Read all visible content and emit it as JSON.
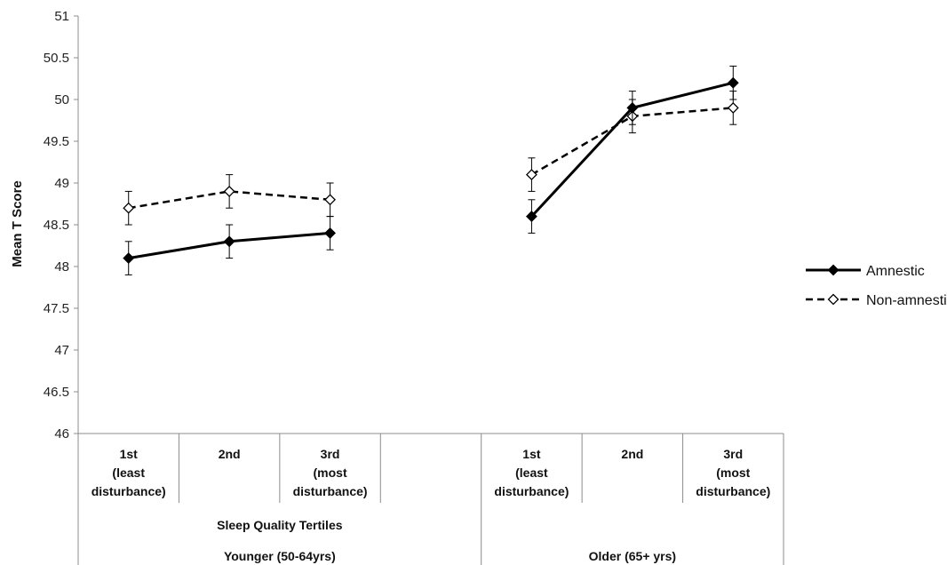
{
  "chart_data": {
    "type": "line",
    "title": "",
    "ylabel": "Mean T Score",
    "ylim": [
      46,
      51
    ],
    "yticks": [
      46,
      46.5,
      47,
      47.5,
      48,
      48.5,
      49,
      49.5,
      50,
      50.5,
      51
    ],
    "grid": false,
    "legend": "right",
    "categories": [
      {
        "lines": [
          "1st",
          "(least",
          "disturbance)"
        ]
      },
      {
        "lines": [
          "2nd"
        ]
      },
      {
        "lines": [
          "3rd",
          "(most",
          "disturbance)"
        ]
      },
      {
        "lines": []
      },
      {
        "lines": [
          "1st",
          "(least",
          "disturbance)"
        ]
      },
      {
        "lines": [
          "2nd"
        ]
      },
      {
        "lines": [
          "3rd",
          "(most",
          "disturbance)"
        ]
      }
    ],
    "subgroup_label": "Sleep Quality Tertiles",
    "groups": [
      {
        "label": "Younger (50-64yrs)"
      },
      {
        "label": "Older (65+ yrs)"
      }
    ],
    "series": [
      {
        "name": "Amnestic",
        "style": "solid",
        "marker": "filled-diamond",
        "color": "#000000",
        "segments": [
          [
            {
              "i": 0,
              "y": 48.1,
              "err": 0.2
            },
            {
              "i": 1,
              "y": 48.3,
              "err": 0.2
            },
            {
              "i": 2,
              "y": 48.4,
              "err": 0.2
            }
          ],
          [
            {
              "i": 4,
              "y": 48.6,
              "err": 0.2
            },
            {
              "i": 5,
              "y": 49.9,
              "err": 0.2
            },
            {
              "i": 6,
              "y": 50.2,
              "err": 0.2
            }
          ]
        ]
      },
      {
        "name": "Non-amnestic",
        "style": "dashed",
        "marker": "open-diamond",
        "color": "#000000",
        "segments": [
          [
            {
              "i": 0,
              "y": 48.7,
              "err": 0.2
            },
            {
              "i": 1,
              "y": 48.9,
              "err": 0.2
            },
            {
              "i": 2,
              "y": 48.8,
              "err": 0.2
            }
          ],
          [
            {
              "i": 4,
              "y": 49.1,
              "err": 0.2
            },
            {
              "i": 5,
              "y": 49.8,
              "err": 0.2
            },
            {
              "i": 6,
              "y": 49.9,
              "err": 0.2
            }
          ]
        ]
      }
    ]
  }
}
